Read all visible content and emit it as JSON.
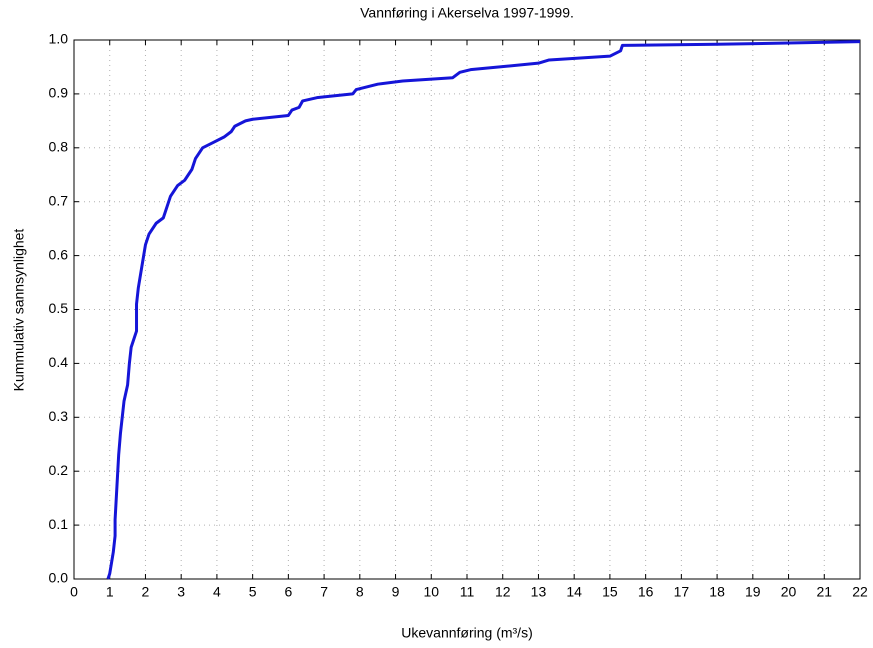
{
  "chart_data": {
    "type": "line",
    "title": "Vannføring i Akerselva 1997-1999.",
    "x_label": "Ukevannføring (m³/s)",
    "y_label": "Kummulativ sannsynlighet",
    "x": [
      0.95,
      1.0,
      1.05,
      1.1,
      1.15,
      1.15,
      1.2,
      1.25,
      1.3,
      1.35,
      1.4,
      1.5,
      1.55,
      1.6,
      1.75,
      1.75,
      1.8,
      1.9,
      2.0,
      2.1,
      2.3,
      2.5,
      2.7,
      2.9,
      3.1,
      3.3,
      3.4,
      3.6,
      3.9,
      4.2,
      4.4,
      4.5,
      4.8,
      5.0,
      6.0,
      6.1,
      6.3,
      6.4,
      6.8,
      7.8,
      7.9,
      8.5,
      9.2,
      10.6,
      10.8,
      11.1,
      13.0,
      13.3,
      15.0,
      15.3,
      15.35,
      18.0,
      22.0
    ],
    "values": [
      0.0,
      0.01,
      0.03,
      0.05,
      0.08,
      0.11,
      0.17,
      0.23,
      0.27,
      0.3,
      0.33,
      0.36,
      0.4,
      0.43,
      0.46,
      0.51,
      0.54,
      0.58,
      0.62,
      0.64,
      0.66,
      0.67,
      0.71,
      0.73,
      0.74,
      0.76,
      0.78,
      0.8,
      0.81,
      0.82,
      0.83,
      0.84,
      0.85,
      0.853,
      0.86,
      0.87,
      0.875,
      0.887,
      0.893,
      0.9,
      0.908,
      0.918,
      0.924,
      0.93,
      0.94,
      0.945,
      0.957,
      0.963,
      0.97,
      0.98,
      0.99,
      0.992,
      0.997
    ],
    "color": "#1515d8",
    "xlim": [
      0,
      22
    ],
    "xticks": [
      0,
      1,
      2,
      3,
      4,
      5,
      6,
      7,
      8,
      9,
      10,
      11,
      12,
      13,
      14,
      15,
      16,
      17,
      18,
      19,
      20,
      21,
      22
    ],
    "ylim": [
      0,
      1
    ],
    "yticks": [
      {
        "value": 0,
        "label": "0.0"
      },
      0.1,
      0.2,
      0.3,
      0.4,
      0.5,
      0.6,
      0.7,
      0.8,
      0.9,
      {
        "value": 1,
        "label": "1.0"
      }
    ],
    "grid": true
  }
}
